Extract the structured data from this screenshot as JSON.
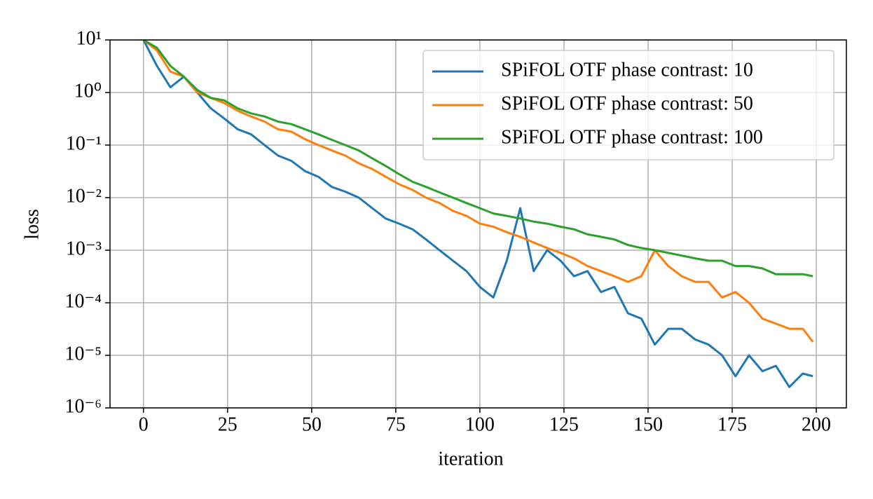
{
  "chart_data": {
    "type": "line",
    "xlabel": "iteration",
    "ylabel": "loss",
    "x": [
      0,
      4,
      8,
      12,
      16,
      20,
      24,
      28,
      32,
      36,
      40,
      44,
      48,
      52,
      56,
      60,
      64,
      68,
      72,
      76,
      80,
      84,
      88,
      92,
      96,
      100,
      104,
      108,
      112,
      116,
      120,
      124,
      128,
      132,
      136,
      140,
      144,
      148,
      152,
      156,
      160,
      164,
      168,
      172,
      176,
      180,
      184,
      188,
      192,
      196,
      199
    ],
    "series": [
      {
        "name": "SPiFOL OTF phase contrast: 10",
        "color": "#1f77b4",
        "values": [
          10,
          3.2,
          1.26,
          2,
          1,
          0.5,
          0.32,
          0.2,
          0.16,
          0.1,
          0.063,
          0.05,
          0.032,
          0.025,
          0.016,
          0.013,
          0.01,
          0.0063,
          0.004,
          0.0032,
          0.0025,
          0.0016,
          0.001,
          0.00063,
          0.0004,
          0.0002,
          0.000126,
          0.00063,
          0.0063,
          0.0004,
          0.001,
          0.00063,
          0.00032,
          0.0004,
          0.00016,
          0.0002,
          6.3e-05,
          5e-05,
          1.6e-05,
          3.2e-05,
          3.2e-05,
          2e-05,
          1.6e-05,
          1e-05,
          4e-06,
          1e-05,
          5e-06,
          6.3e-06,
          2.5e-06,
          4.5e-06,
          4e-06
        ]
      },
      {
        "name": "SPiFOL OTF phase contrast: 50",
        "color": "#ff7f0e",
        "values": [
          10,
          6.3,
          2.5,
          2,
          1,
          0.79,
          0.63,
          0.45,
          0.35,
          0.28,
          0.2,
          0.18,
          0.13,
          0.1,
          0.079,
          0.063,
          0.045,
          0.035,
          0.025,
          0.018,
          0.014,
          0.01,
          0.0079,
          0.0056,
          0.0045,
          0.0032,
          0.0028,
          0.0022,
          0.0018,
          0.0014,
          0.0011,
          0.00089,
          0.0007,
          0.0005,
          0.0004,
          0.00032,
          0.00025,
          0.00032,
          0.001,
          0.0005,
          0.00032,
          0.00025,
          0.00025,
          0.000126,
          0.00016,
          0.0001,
          5e-05,
          4e-05,
          3.2e-05,
          3.2e-05,
          1.8e-05
        ]
      },
      {
        "name": "SPiFOL OTF phase contrast: 100",
        "color": "#2ca02c",
        "values": [
          10,
          7.1,
          3.2,
          2,
          1.12,
          0.79,
          0.71,
          0.5,
          0.4,
          0.35,
          0.28,
          0.25,
          0.2,
          0.16,
          0.126,
          0.1,
          0.079,
          0.056,
          0.04,
          0.028,
          0.02,
          0.016,
          0.0126,
          0.01,
          0.0079,
          0.0063,
          0.005,
          0.0045,
          0.004,
          0.0035,
          0.0032,
          0.0028,
          0.0025,
          0.002,
          0.0018,
          0.0016,
          0.00126,
          0.0011,
          0.001,
          0.00089,
          0.00079,
          0.0007,
          0.00063,
          0.00063,
          0.0005,
          0.0005,
          0.00045,
          0.00035,
          0.00035,
          0.00035,
          0.00032
        ]
      }
    ],
    "xlim": [
      -9.95,
      208.95
    ],
    "xticks": [
      0,
      25,
      50,
      75,
      100,
      125,
      150,
      175,
      200
    ],
    "ylim": [
      1e-06,
      10
    ],
    "yscale": "log",
    "yticks": [
      {
        "value": 1e-06,
        "label": "10⁻⁶"
      },
      {
        "value": 1e-05,
        "label": "10⁻⁵"
      },
      {
        "value": 0.0001,
        "label": "10⁻⁴"
      },
      {
        "value": 0.001,
        "label": "10⁻³"
      },
      {
        "value": 0.01,
        "label": "10⁻²"
      },
      {
        "value": 0.1,
        "label": "10⁻¹"
      },
      {
        "value": 1,
        "label": "10⁰"
      },
      {
        "value": 10,
        "label": "10¹"
      }
    ],
    "grid": true,
    "legend": "upper right"
  }
}
